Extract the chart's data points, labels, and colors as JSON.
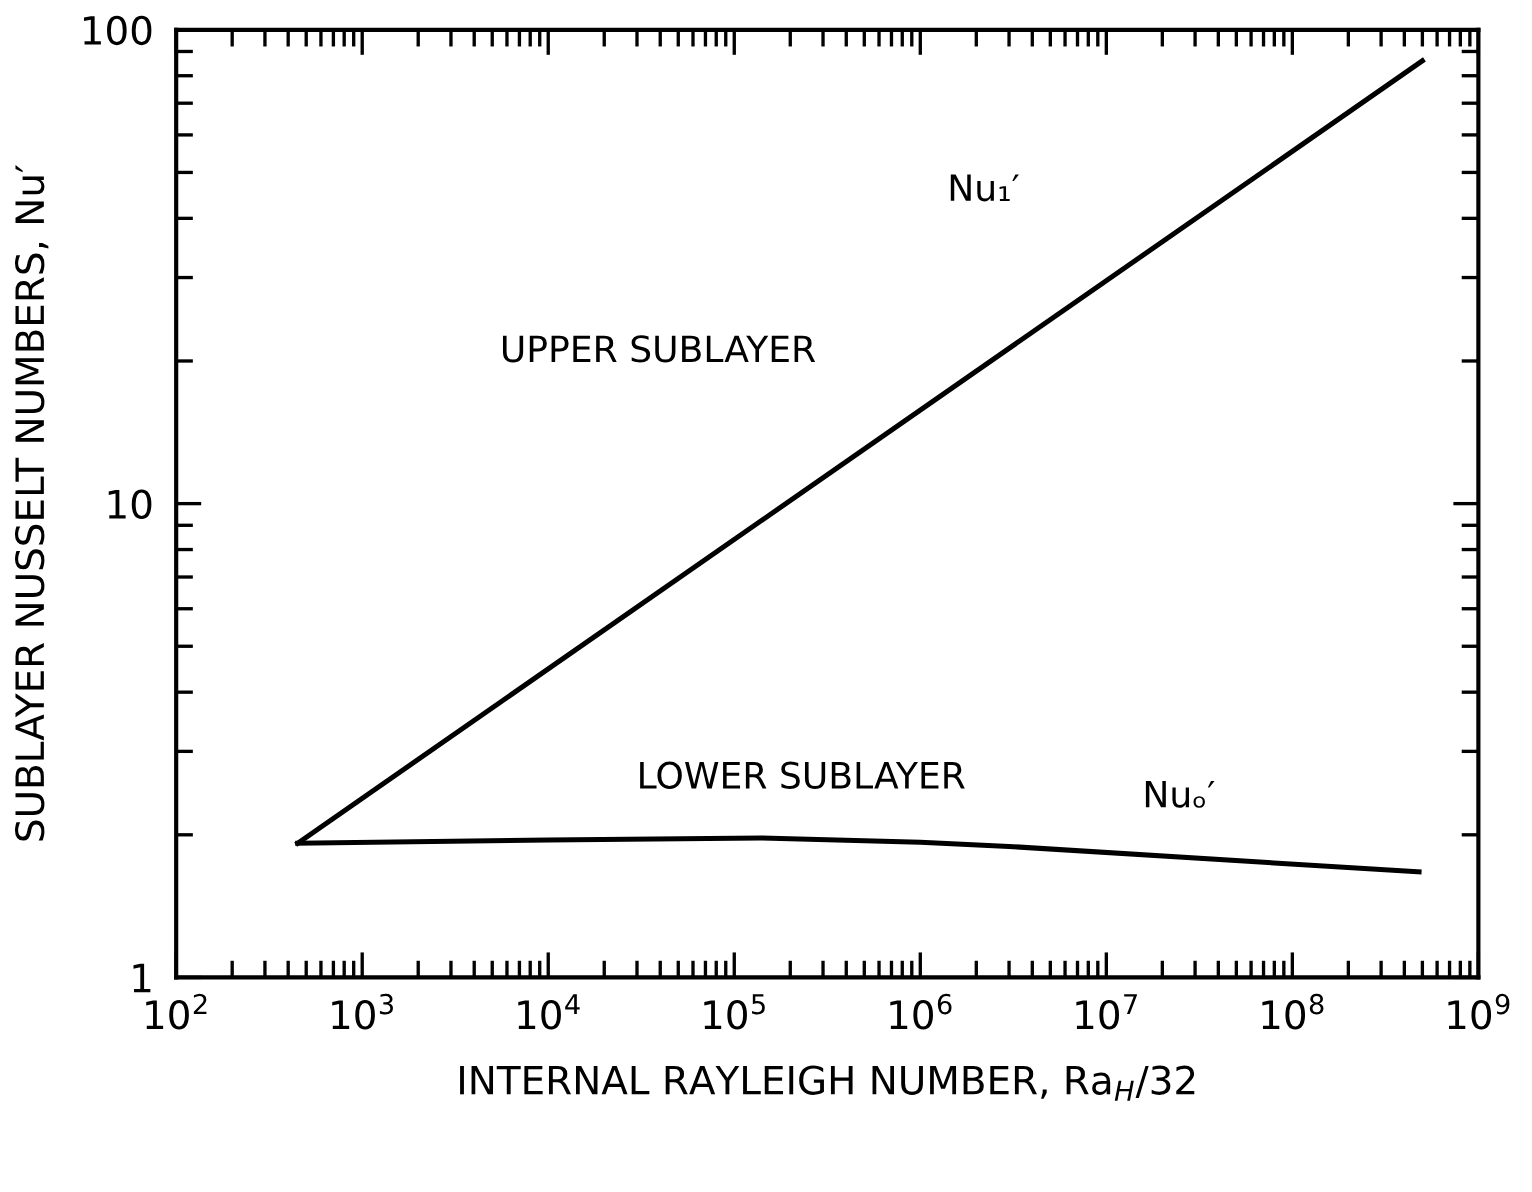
{
  "chart_data": {
    "type": "line",
    "xlabel": "INTERNAL RAYLEIGH NUMBER, Ra$_{H}$/32",
    "ylabel": "SUBLAYER NUSSELT NUMBERS, Nu′",
    "log": "xy",
    "xlim": [
      100,
      1000000000
    ],
    "ylim": [
      1,
      100
    ],
    "xticks": [
      {
        "value": 100,
        "label": "10$^{2}$"
      },
      {
        "value": 1000,
        "label": "10$^{3}$"
      },
      {
        "value": 10000,
        "label": "10$^{4}$"
      },
      {
        "value": 100000,
        "label": "10$^{5}$"
      },
      {
        "value": 1000000,
        "label": "10$^{6}$"
      },
      {
        "value": 10000000,
        "label": "10$^{7}$"
      },
      {
        "value": 100000000,
        "label": "10$^{8}$"
      },
      {
        "value": 1000000000,
        "label": "10$^{9}$"
      }
    ],
    "yticks": [
      1,
      10,
      100
    ],
    "grid": false,
    "legend": false,
    "marker": "none",
    "line_style": "solid",
    "series": [
      {
        "color": "#000000",
        "x": [
          450,
          500000000
        ],
        "values": [
          1.92,
          86
        ]
      },
      {
        "color": "#000000",
        "x": [
          450,
          10000,
          140000,
          1000000,
          3000000,
          480000000
        ],
        "values": [
          1.92,
          1.95,
          1.97,
          1.93,
          1.89,
          1.67
        ]
      }
    ],
    "annotations": [
      "UPPER SUBLAYER",
      "LOWER SUBLAYER",
      "Nu₁′",
      "Nuₒ′"
    ]
  }
}
